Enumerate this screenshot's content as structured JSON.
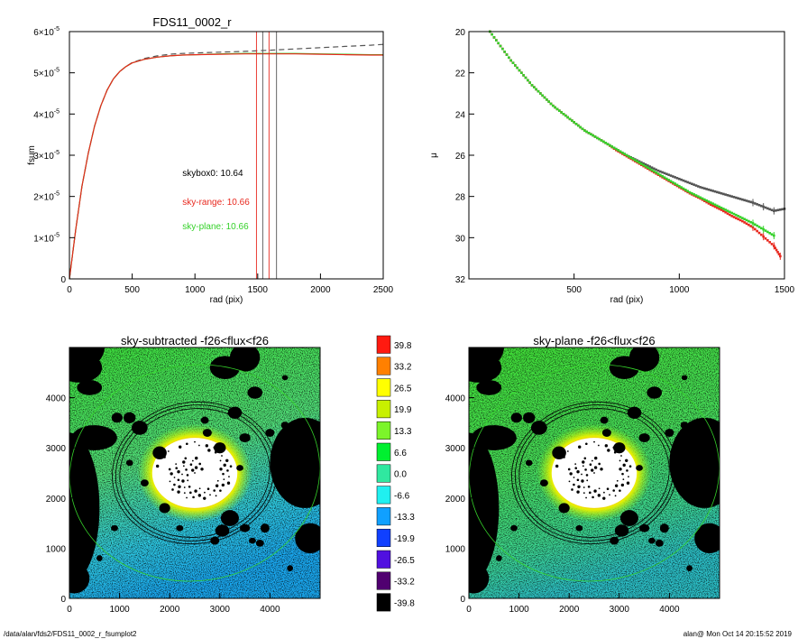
{
  "footer": {
    "path": "/data/alan/fds2/FDS11_0002_r_fsumplot2",
    "stamp": "alan@  Mon Oct 14 20:15:52 2019"
  },
  "colors": {
    "red": "#e8281e",
    "green": "#35d12a",
    "dashed": "#555555",
    "black": "#000000"
  },
  "chart_data": [
    {
      "id": "fsum",
      "type": "line",
      "title": "FDS11_0002_r",
      "xlabel": "rad (pix)",
      "ylabel": "fsum",
      "xlim": [
        0,
        2500
      ],
      "ylim": [
        0,
        6e-05
      ],
      "xticks": [
        {
          "v": 0,
          "label": "0"
        },
        {
          "v": 500,
          "label": "500"
        },
        {
          "v": 1000,
          "label": "1000"
        },
        {
          "v": 1500,
          "label": "1500"
        },
        {
          "v": 2000,
          "label": "2000"
        },
        {
          "v": 2500,
          "label": "2500"
        }
      ],
      "yticks": [
        {
          "v": 0,
          "label": "0"
        },
        {
          "v": 1e-05,
          "mant": "1×10",
          "exp": "-5"
        },
        {
          "v": 2e-05,
          "mant": "2×10",
          "exp": "-5"
        },
        {
          "v": 3e-05,
          "mant": "3×10",
          "exp": "-5"
        },
        {
          "v": 4e-05,
          "mant": "4×10",
          "exp": "-5"
        },
        {
          "v": 5e-05,
          "mant": "5×10",
          "exp": "-5"
        },
        {
          "v": 6e-05,
          "mant": "6×10",
          "exp": "-5"
        }
      ],
      "series": [
        {
          "color": "#555555",
          "dashed": true,
          "x": [
            0,
            50,
            100,
            150,
            200,
            250,
            300,
            350,
            400,
            450,
            500,
            600,
            700,
            800,
            900,
            1000,
            1200,
            1400,
            1600,
            1800,
            2000,
            2200,
            2400,
            2500
          ],
          "y": [
            0,
            1.2e-05,
            2.25e-05,
            3.05e-05,
            3.7e-05,
            4.2e-05,
            4.58e-05,
            4.85e-05,
            5.03e-05,
            5.15e-05,
            5.25e-05,
            5.35e-05,
            5.41e-05,
            5.45e-05,
            5.47e-05,
            5.48e-05,
            5.5e-05,
            5.52e-05,
            5.55e-05,
            5.58e-05,
            5.61e-05,
            5.64e-05,
            5.67e-05,
            5.69e-05
          ]
        },
        {
          "color": "#35d12a",
          "dashed": false,
          "x": [
            0,
            50,
            100,
            150,
            200,
            250,
            300,
            350,
            400,
            450,
            500,
            600,
            700,
            800,
            900,
            1000,
            1200,
            1400,
            1600,
            1800,
            2000,
            2200,
            2400,
            2500
          ],
          "y": [
            0,
            1.2e-05,
            2.25e-05,
            3.05e-05,
            3.7e-05,
            4.2e-05,
            4.58e-05,
            4.85e-05,
            5.03e-05,
            5.15e-05,
            5.24e-05,
            5.33e-05,
            5.38e-05,
            5.41e-05,
            5.43e-05,
            5.44e-05,
            5.46e-05,
            5.47e-05,
            5.47e-05,
            5.47e-05,
            5.46e-05,
            5.45e-05,
            5.44e-05,
            5.44e-05
          ]
        },
        {
          "color": "#e8281e",
          "dashed": false,
          "x": [
            0,
            50,
            100,
            150,
            200,
            250,
            300,
            350,
            400,
            450,
            500,
            600,
            700,
            800,
            900,
            1000,
            1200,
            1400,
            1600,
            1800,
            2000,
            2200,
            2400,
            2500
          ],
          "y": [
            0,
            1.2e-05,
            2.25e-05,
            3.05e-05,
            3.7e-05,
            4.2e-05,
            4.58e-05,
            4.85e-05,
            5.03e-05,
            5.15e-05,
            5.24e-05,
            5.33e-05,
            5.38e-05,
            5.41e-05,
            5.43e-05,
            5.44e-05,
            5.45e-05,
            5.46e-05,
            5.46e-05,
            5.46e-05,
            5.45e-05,
            5.44e-05,
            5.43e-05,
            5.43e-05
          ]
        }
      ],
      "vlines": [
        {
          "x": 1490,
          "color": "#e8281e"
        },
        {
          "x": 1540,
          "color": "#555555"
        },
        {
          "x": 1590,
          "color": "#e8281e"
        },
        {
          "x": 1650,
          "color": "#555555"
        }
      ],
      "annotations": [
        {
          "text": "skybox0: 10.64",
          "color": "#000000",
          "x": 900,
          "y": 2.5e-05
        },
        {
          "text": "sky-range: 10.66",
          "color": "#e8281e",
          "x": 900,
          "y": 1.8e-05
        },
        {
          "text": "sky-plane: 10.66",
          "color": "#35d12a",
          "x": 900,
          "y": 1.2e-05
        }
      ]
    },
    {
      "id": "profile",
      "type": "scatter",
      "xlabel": "rad (pix)",
      "ylabel": "μ",
      "xlim": [
        0,
        1500
      ],
      "ylim": [
        32,
        20
      ],
      "xticks": [
        {
          "v": 500,
          "label": "500"
        },
        {
          "v": 1000,
          "label": "1000"
        },
        {
          "v": 1500,
          "label": "1500"
        }
      ],
      "yticks": [
        {
          "v": 20,
          "label": "20"
        },
        {
          "v": 22,
          "label": "22"
        },
        {
          "v": 24,
          "label": "24"
        },
        {
          "v": 26,
          "label": "26"
        },
        {
          "v": 28,
          "label": "28"
        },
        {
          "v": 30,
          "label": "30"
        },
        {
          "v": 32,
          "label": "32"
        }
      ],
      "series": [
        {
          "color": "#555555",
          "x": [
            100,
            150,
            200,
            250,
            300,
            350,
            400,
            450,
            500,
            550,
            600,
            650,
            700,
            750,
            800,
            850,
            900,
            950,
            1000,
            1050,
            1100,
            1150,
            1200,
            1250,
            1300,
            1350,
            1400,
            1450,
            1500
          ],
          "y": [
            20.0,
            20.7,
            21.4,
            22.0,
            22.6,
            23.1,
            23.6,
            24.0,
            24.4,
            24.8,
            25.1,
            25.4,
            25.7,
            26.0,
            26.25,
            26.5,
            26.75,
            26.95,
            27.15,
            27.35,
            27.55,
            27.7,
            27.85,
            28.0,
            28.15,
            28.3,
            28.5,
            28.7,
            28.6
          ]
        },
        {
          "color": "#e8281e",
          "x": [
            100,
            150,
            200,
            250,
            300,
            350,
            400,
            450,
            500,
            550,
            600,
            650,
            700,
            750,
            800,
            850,
            900,
            950,
            1000,
            1050,
            1100,
            1150,
            1200,
            1250,
            1300,
            1350,
            1400,
            1450,
            1480
          ],
          "y": [
            20.0,
            20.7,
            21.4,
            22.0,
            22.6,
            23.1,
            23.6,
            24.0,
            24.4,
            24.8,
            25.1,
            25.4,
            25.75,
            26.05,
            26.35,
            26.65,
            26.95,
            27.25,
            27.55,
            27.85,
            28.1,
            28.4,
            28.65,
            28.95,
            29.2,
            29.5,
            29.95,
            30.4,
            30.9
          ]
        },
        {
          "color": "#35d12a",
          "x": [
            100,
            150,
            200,
            250,
            300,
            350,
            400,
            450,
            500,
            550,
            600,
            650,
            700,
            750,
            800,
            850,
            900,
            950,
            1000,
            1050,
            1100,
            1150,
            1200,
            1250,
            1300,
            1350,
            1400,
            1450
          ],
          "y": [
            20.0,
            20.7,
            21.4,
            22.0,
            22.6,
            23.1,
            23.6,
            24.0,
            24.4,
            24.8,
            25.1,
            25.4,
            25.7,
            26.0,
            26.3,
            26.6,
            26.9,
            27.2,
            27.5,
            27.8,
            28.05,
            28.3,
            28.55,
            28.8,
            29.05,
            29.3,
            29.6,
            29.9
          ]
        }
      ]
    },
    {
      "id": "img-sub",
      "type": "heatmap",
      "title": "sky-subtracted -f26<flux<f26",
      "xlim": [
        0,
        5000
      ],
      "ylim": [
        0,
        5000
      ],
      "xticks": [
        {
          "v": 0,
          "label": "0"
        },
        {
          "v": 1000,
          "label": "1000"
        },
        {
          "v": 2000,
          "label": "2000"
        },
        {
          "v": 3000,
          "label": "3000"
        },
        {
          "v": 4000,
          "label": "4000"
        }
      ],
      "yticks": [
        {
          "v": 0,
          "label": "0"
        },
        {
          "v": 1000,
          "label": "1000"
        },
        {
          "v": 2000,
          "label": "2000"
        },
        {
          "v": 3000,
          "label": "3000"
        },
        {
          "v": 4000,
          "label": "4000"
        }
      ]
    },
    {
      "id": "img-plane",
      "type": "heatmap",
      "title": "sky-plane -f26<flux<f26",
      "xlim": [
        0,
        5000
      ],
      "ylim": [
        0,
        5000
      ],
      "xticks": [
        {
          "v": 0,
          "label": "0"
        },
        {
          "v": 1000,
          "label": "1000"
        },
        {
          "v": 2000,
          "label": "2000"
        },
        {
          "v": 3000,
          "label": "3000"
        },
        {
          "v": 4000,
          "label": "4000"
        }
      ],
      "yticks": [
        {
          "v": 0,
          "label": "0"
        },
        {
          "v": 1000,
          "label": "1000"
        },
        {
          "v": 2000,
          "label": "2000"
        },
        {
          "v": 3000,
          "label": "3000"
        },
        {
          "v": 4000,
          "label": "4000"
        }
      ]
    }
  ],
  "colorbar": {
    "levels": [
      {
        "label": "39.8",
        "color": "#ff1a10"
      },
      {
        "label": "33.2",
        "color": "#ff8000"
      },
      {
        "label": "26.5",
        "color": "#ffff00"
      },
      {
        "label": "19.9",
        "color": "#c8f000"
      },
      {
        "label": "13.3",
        "color": "#7cf52a"
      },
      {
        "label": "6.6",
        "color": "#00f030"
      },
      {
        "label": "0.0",
        "color": "#30e8a0"
      },
      {
        "label": "-6.6",
        "color": "#20f0f0"
      },
      {
        "label": "-13.3",
        "color": "#10a0ff"
      },
      {
        "label": "-19.9",
        "color": "#1040ff"
      },
      {
        "label": "-26.5",
        "color": "#5010e0"
      },
      {
        "label": "-33.2",
        "color": "#500070"
      },
      {
        "label": "-39.8",
        "color": "#000000"
      }
    ]
  },
  "overlay": {
    "galaxy_center": [
      2500,
      2500
    ],
    "galaxy_core_radii": [
      850,
      700
    ],
    "ellipses": [
      {
        "rx": 1500,
        "ry": 1280,
        "color": "#000000"
      },
      {
        "rx": 1580,
        "ry": 1350,
        "color": "#000000"
      },
      {
        "rx": 1650,
        "ry": 1410,
        "color": "#000000"
      },
      {
        "rx": 2500,
        "ry": 2150,
        "color": "#35d12a"
      }
    ]
  }
}
